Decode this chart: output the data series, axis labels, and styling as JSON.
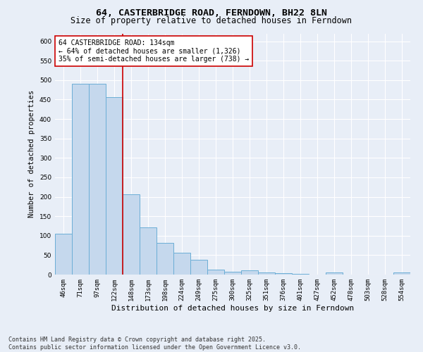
{
  "title": "64, CASTERBRIDGE ROAD, FERNDOWN, BH22 8LN",
  "subtitle": "Size of property relative to detached houses in Ferndown",
  "xlabel": "Distribution of detached houses by size in Ferndown",
  "ylabel": "Number of detached properties",
  "categories": [
    "46sqm",
    "71sqm",
    "97sqm",
    "122sqm",
    "148sqm",
    "173sqm",
    "198sqm",
    "224sqm",
    "249sqm",
    "275sqm",
    "300sqm",
    "325sqm",
    "351sqm",
    "376sqm",
    "401sqm",
    "427sqm",
    "452sqm",
    "478sqm",
    "503sqm",
    "528sqm",
    "554sqm"
  ],
  "values": [
    105,
    490,
    490,
    457,
    207,
    122,
    82,
    57,
    38,
    13,
    8,
    10,
    5,
    3,
    1,
    0,
    5,
    0,
    0,
    0,
    5
  ],
  "bar_color": "#c5d8ed",
  "bar_edge_color": "#6baed6",
  "vline_index": 3,
  "marker_line_label": "64 CASTERBRIDGE ROAD: 134sqm",
  "annotation_line1": "← 64% of detached houses are smaller (1,326)",
  "annotation_line2": "35% of semi-detached houses are larger (738) →",
  "annotation_box_color": "#ffffff",
  "annotation_box_edge": "#cc0000",
  "vline_color": "#cc0000",
  "ylim": [
    0,
    620
  ],
  "yticks": [
    0,
    50,
    100,
    150,
    200,
    250,
    300,
    350,
    400,
    450,
    500,
    550,
    600
  ],
  "background_color": "#e8eef7",
  "grid_color": "#ffffff",
  "footnote": "Contains HM Land Registry data © Crown copyright and database right 2025.\nContains public sector information licensed under the Open Government Licence v3.0.",
  "title_fontsize": 9.5,
  "subtitle_fontsize": 8.5,
  "xlabel_fontsize": 8,
  "ylabel_fontsize": 7.5,
  "tick_fontsize": 6.5,
  "annotation_fontsize": 7,
  "footnote_fontsize": 6
}
